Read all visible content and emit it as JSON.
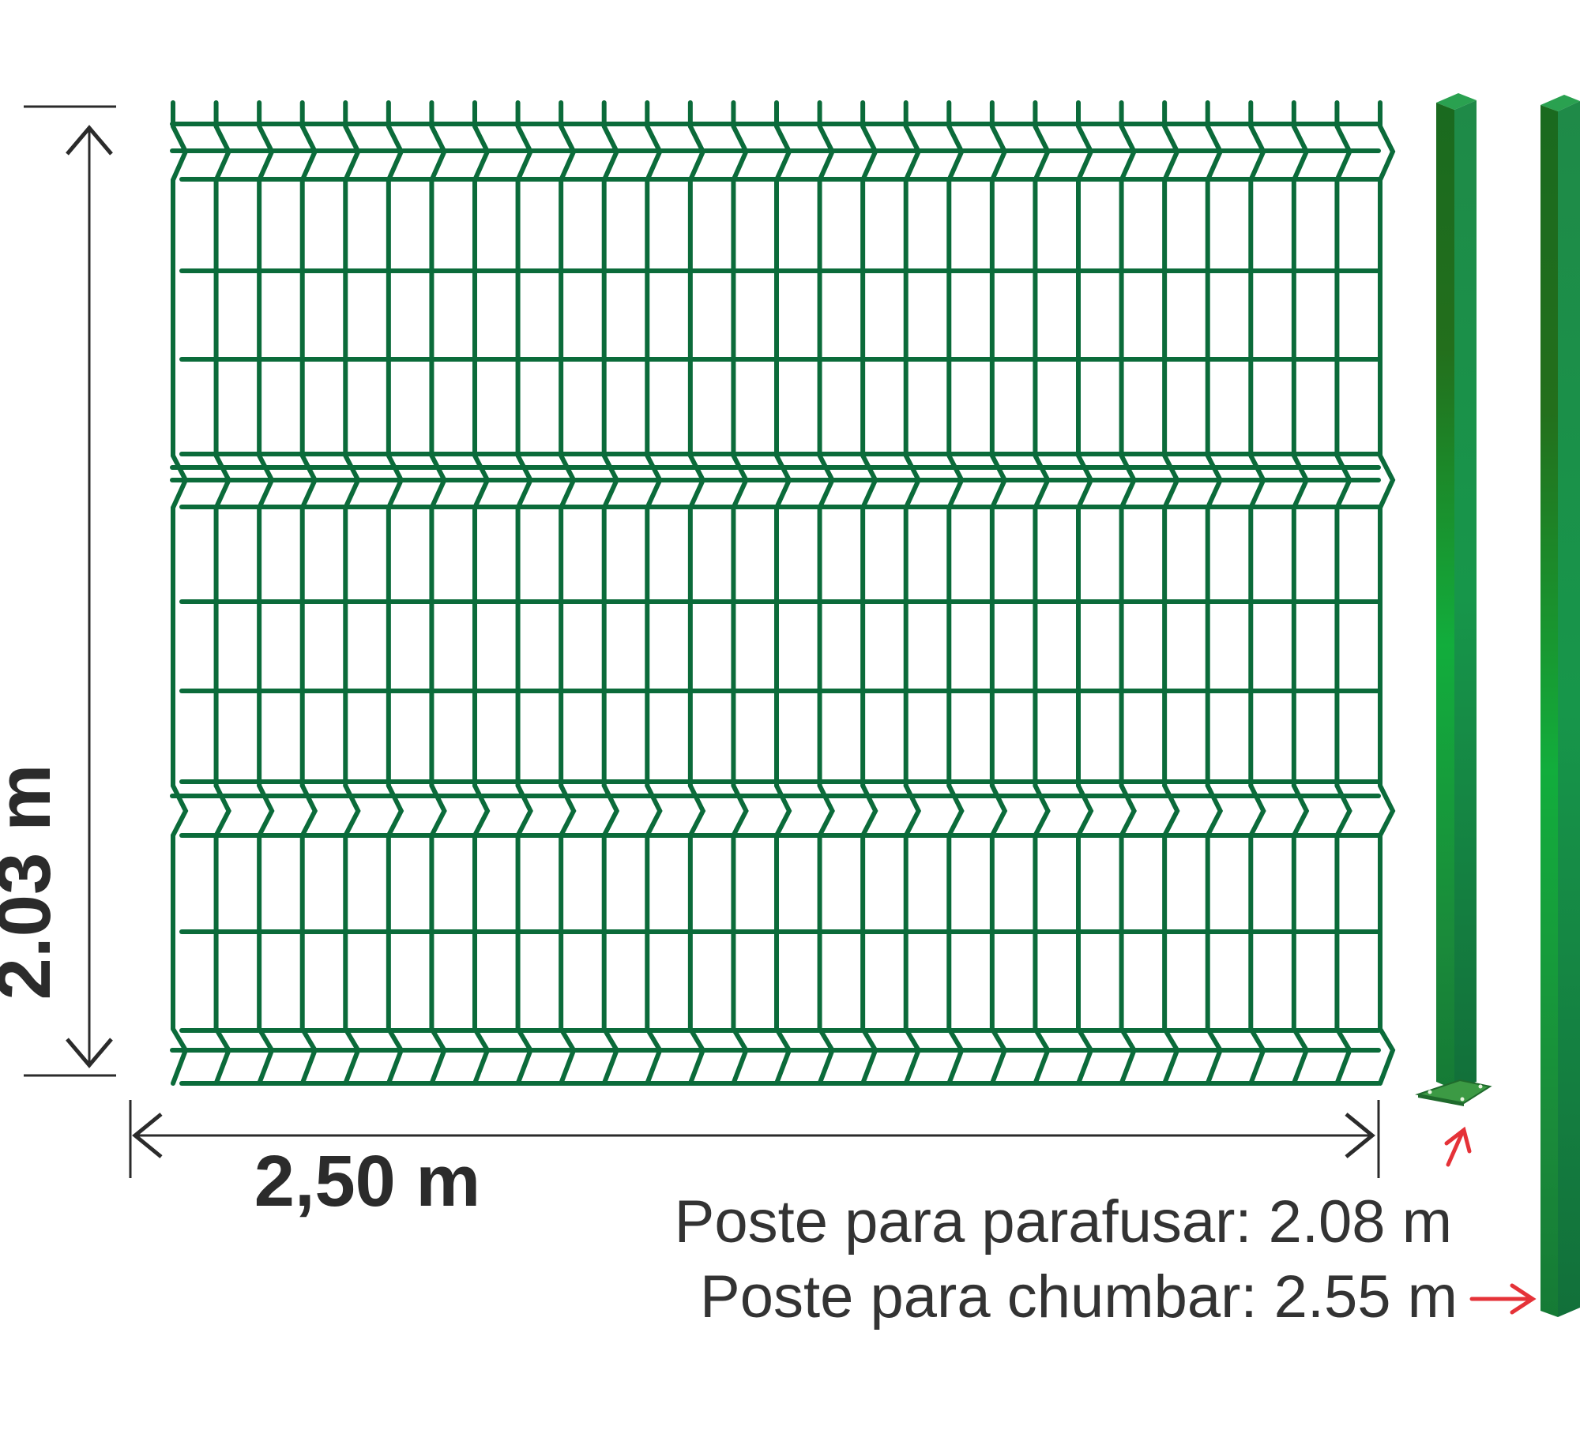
{
  "dimensions": {
    "height_label": "2.03 m",
    "width_label": "2,50 m"
  },
  "captions": {
    "bolted_post": "Poste para parafusar: 2.08 m",
    "embedded_post": "Poste para chumbar: 2.55 m"
  },
  "colors": {
    "wire": "#0b6b3a",
    "post_dark": "#14622e",
    "post_light": "#12ad3c",
    "dimension_line": "#2b2b2b",
    "arrow": "#e53238"
  }
}
